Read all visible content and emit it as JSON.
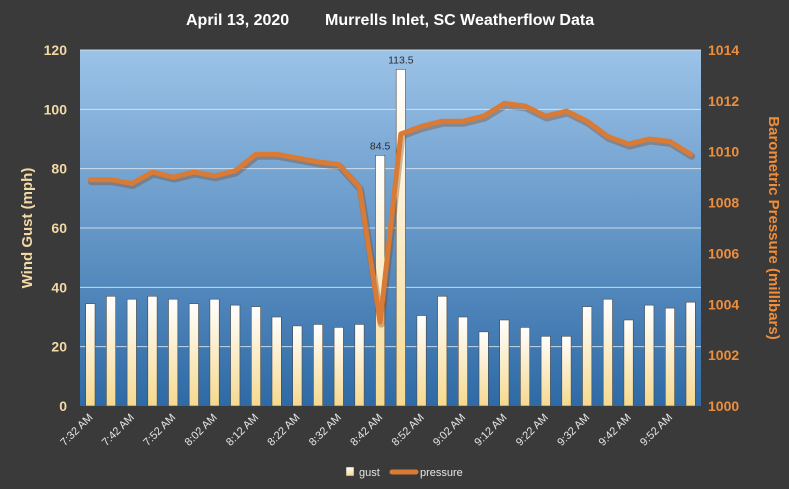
{
  "chart_data": {
    "type": "bar",
    "title_date": "April 13, 2020",
    "title_main": "Murrells Inlet, SC Weatherflow Data",
    "ylabel_left": "Wind Gust (mph)",
    "ylabel_right": "Barometric Pressure (millibars)",
    "ylim_left": [
      0,
      120
    ],
    "ylim_right": [
      1000,
      1014
    ],
    "yticks_left": [
      "0",
      "20",
      "40",
      "60",
      "80",
      "100",
      "120"
    ],
    "yticks_right": [
      "1000",
      "1002",
      "1004",
      "1006",
      "1008",
      "1010",
      "1012",
      "1014"
    ],
    "x_tick_labels": [
      "7:32 AM",
      "7:42 AM",
      "7:52 AM",
      "8:02 AM",
      "8:12 AM",
      "8:22 AM",
      "8:32 AM",
      "8:42 AM",
      "8:52 AM",
      "9:02 AM",
      "9:12 AM",
      "9:22 AM",
      "9:32 AM",
      "9:42 AM",
      "9:52 AM"
    ],
    "series": [
      {
        "name": "gust",
        "type": "bar",
        "axis": "left",
        "values": [
          34.5,
          37,
          36,
          37,
          36,
          34.5,
          36,
          34,
          33.5,
          30,
          27,
          27.5,
          26.5,
          27.5,
          84.5,
          113.5,
          30.5,
          37,
          30,
          25,
          29,
          26.5,
          23.5,
          23.5,
          33.5,
          36,
          29,
          34,
          33,
          35
        ]
      },
      {
        "name": "pressure",
        "type": "line",
        "axis": "right",
        "values": [
          1008.9,
          1008.9,
          1008.75,
          1009.2,
          1009.0,
          1009.2,
          1009.05,
          1009.25,
          1009.9,
          1009.9,
          1009.75,
          1009.6,
          1009.5,
          1008.6,
          1003.3,
          1010.7,
          1011.0,
          1011.2,
          1011.2,
          1011.4,
          1011.9,
          1011.8,
          1011.4,
          1011.6,
          1011.2,
          1010.6,
          1010.3,
          1010.5,
          1010.4,
          1009.9
        ]
      }
    ],
    "data_labels": [
      {
        "series": "gust",
        "index": 14,
        "text": "84.5"
      },
      {
        "series": "gust",
        "index": 15,
        "text": "113.5"
      }
    ],
    "legend": {
      "position": "bottom-center",
      "items": [
        "gust",
        "pressure"
      ]
    },
    "grid": true,
    "colors": {
      "background": "#3a3a3a",
      "plot_top": "#9cc3e8",
      "plot_bottom": "#2e6aa6",
      "bar_top": "#ffffff",
      "bar_bottom": "#f6d98f",
      "line": "#d97b35",
      "left_axis_text": "#f2d9a6",
      "right_axis_text": "#ef8e3a"
    }
  }
}
